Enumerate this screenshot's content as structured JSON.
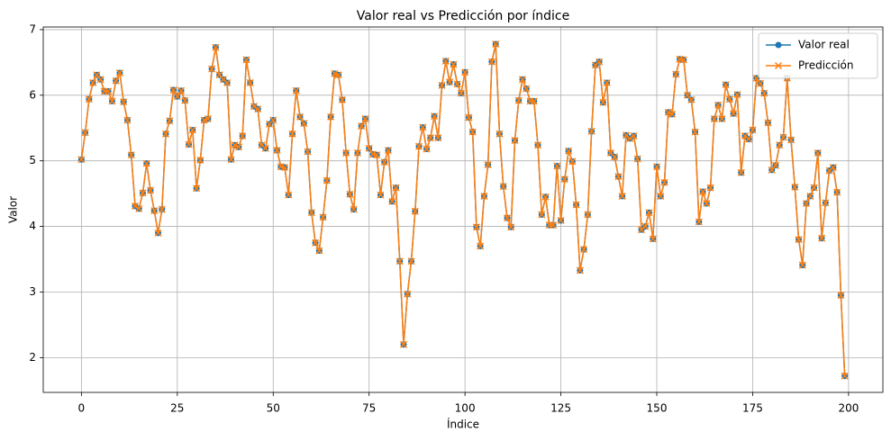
{
  "chart_data": {
    "type": "line",
    "title": "Valor real vs Predicción por índice",
    "xlabel": "Índice",
    "ylabel": "Valor",
    "x": [
      0,
      1,
      2,
      3,
      4,
      5,
      6,
      7,
      8,
      9,
      10,
      11,
      12,
      13,
      14,
      15,
      16,
      17,
      18,
      19,
      20,
      21,
      22,
      23,
      24,
      25,
      26,
      27,
      28,
      29,
      30,
      31,
      32,
      33,
      34,
      35,
      36,
      37,
      38,
      39,
      40,
      41,
      42,
      43,
      44,
      45,
      46,
      47,
      48,
      49,
      50,
      51,
      52,
      53,
      54,
      55,
      56,
      57,
      58,
      59,
      60,
      61,
      62,
      63,
      64,
      65,
      66,
      67,
      68,
      69,
      70,
      71,
      72,
      73,
      74,
      75,
      76,
      77,
      78,
      79,
      80,
      81,
      82,
      83,
      84,
      85,
      86,
      87,
      88,
      89,
      90,
      91,
      92,
      93,
      94,
      95,
      96,
      97,
      98,
      99,
      100,
      101,
      102,
      103,
      104,
      105,
      106,
      107,
      108,
      109,
      110,
      111,
      112,
      113,
      114,
      115,
      116,
      117,
      118,
      119,
      120,
      121,
      122,
      123,
      124,
      125,
      126,
      127,
      128,
      129,
      130,
      131,
      132,
      133,
      134,
      135,
      136,
      137,
      138,
      139,
      140,
      141,
      142,
      143,
      144,
      145,
      146,
      147,
      148,
      149,
      150,
      151,
      152,
      153,
      154,
      155,
      156,
      157,
      158,
      159,
      160,
      161,
      162,
      163,
      164,
      165,
      166,
      167,
      168,
      169,
      170,
      171,
      172,
      173,
      174,
      175,
      176,
      177,
      178,
      179,
      180,
      181,
      182,
      183,
      184,
      185,
      186,
      187,
      188,
      189,
      190,
      191,
      192,
      193,
      194,
      195,
      196,
      197,
      198,
      199
    ],
    "series": [
      {
        "name": "Valor real",
        "color": "#1f77b4",
        "marker": "o",
        "values": [
          5.02,
          5.43,
          5.94,
          6.19,
          6.31,
          6.24,
          6.06,
          6.06,
          5.91,
          6.22,
          6.34,
          5.9,
          5.62,
          5.09,
          4.31,
          4.27,
          4.51,
          4.96,
          4.55,
          4.24,
          3.9,
          4.26,
          5.41,
          5.61,
          6.08,
          5.98,
          6.07,
          5.92,
          5.25,
          5.47,
          4.58,
          5.01,
          5.62,
          5.64,
          6.4,
          6.73,
          6.31,
          6.24,
          6.19,
          5.02,
          5.24,
          5.21,
          5.38,
          6.54,
          6.19,
          5.83,
          5.79,
          5.24,
          5.19,
          5.56,
          5.62,
          5.16,
          4.91,
          4.9,
          4.48,
          5.41,
          6.07,
          5.67,
          5.57,
          5.14,
          4.21,
          3.75,
          3.63,
          4.14,
          4.7,
          5.67,
          6.33,
          6.31,
          5.93,
          5.12,
          4.49,
          4.26,
          5.12,
          5.53,
          5.64,
          5.19,
          5.1,
          5.09,
          4.48,
          4.98,
          5.16,
          4.38,
          4.59,
          3.47,
          2.2,
          2.97,
          3.47,
          4.23,
          5.22,
          5.51,
          5.18,
          5.35,
          5.68,
          5.35,
          6.15,
          6.52,
          6.2,
          6.47,
          6.17,
          6.03,
          6.35,
          5.66,
          5.44,
          3.99,
          3.7,
          4.46,
          4.94,
          6.51,
          6.78,
          5.41,
          4.61,
          4.13,
          3.99,
          5.31,
          5.92,
          6.24,
          6.1,
          5.91,
          5.91,
          5.24,
          4.18,
          4.45,
          4.02,
          4.02,
          4.92,
          4.09,
          4.72,
          5.15,
          4.99,
          4.33,
          3.33,
          3.65,
          4.18,
          5.45,
          6.46,
          6.51,
          5.89,
          6.19,
          5.12,
          5.06,
          4.76,
          4.46,
          5.39,
          5.34,
          5.38,
          5.03,
          3.95,
          4.0,
          4.21,
          3.81,
          4.91,
          4.46,
          4.67,
          5.74,
          5.71,
          6.32,
          6.55,
          6.54,
          6.0,
          5.93,
          5.44,
          4.07,
          4.53,
          4.35,
          4.59,
          5.64,
          5.85,
          5.64,
          6.16,
          5.94,
          5.72,
          6.01,
          4.82,
          5.38,
          5.33,
          5.47,
          6.26,
          6.18,
          6.03,
          5.58,
          4.86,
          4.93,
          5.24,
          5.36,
          6.26,
          5.32,
          4.6,
          3.8,
          3.41,
          4.35,
          4.46,
          4.59,
          5.12,
          3.82,
          4.36,
          4.85,
          4.9,
          4.52,
          2.95,
          1.72
        ]
      },
      {
        "name": "Predicción",
        "color": "#ff7f0e",
        "marker": "x",
        "values": [
          5.02,
          5.43,
          5.94,
          6.19,
          6.31,
          6.24,
          6.06,
          6.06,
          5.91,
          6.22,
          6.34,
          5.9,
          5.62,
          5.09,
          4.31,
          4.27,
          4.51,
          4.96,
          4.55,
          4.24,
          3.9,
          4.26,
          5.41,
          5.61,
          6.08,
          5.98,
          6.07,
          5.92,
          5.25,
          5.47,
          4.58,
          5.01,
          5.62,
          5.64,
          6.4,
          6.73,
          6.31,
          6.24,
          6.19,
          5.02,
          5.24,
          5.21,
          5.38,
          6.54,
          6.19,
          5.83,
          5.79,
          5.24,
          5.19,
          5.56,
          5.62,
          5.16,
          4.91,
          4.9,
          4.48,
          5.41,
          6.07,
          5.67,
          5.57,
          5.14,
          4.21,
          3.75,
          3.63,
          4.14,
          4.7,
          5.67,
          6.33,
          6.31,
          5.93,
          5.12,
          4.49,
          4.26,
          5.12,
          5.53,
          5.64,
          5.19,
          5.1,
          5.09,
          4.48,
          4.98,
          5.16,
          4.38,
          4.59,
          3.47,
          2.2,
          2.97,
          3.47,
          4.23,
          5.22,
          5.51,
          5.18,
          5.35,
          5.68,
          5.35,
          6.15,
          6.52,
          6.2,
          6.47,
          6.17,
          6.03,
          6.35,
          5.66,
          5.44,
          3.99,
          3.7,
          4.46,
          4.94,
          6.51,
          6.78,
          5.41,
          4.61,
          4.13,
          3.99,
          5.31,
          5.92,
          6.24,
          6.1,
          5.91,
          5.91,
          5.24,
          4.18,
          4.45,
          4.02,
          4.02,
          4.92,
          4.09,
          4.72,
          5.15,
          4.99,
          4.33,
          3.33,
          3.65,
          4.18,
          5.45,
          6.46,
          6.51,
          5.89,
          6.19,
          5.12,
          5.06,
          4.76,
          4.46,
          5.39,
          5.34,
          5.38,
          5.03,
          3.95,
          4.0,
          4.21,
          3.81,
          4.91,
          4.46,
          4.67,
          5.74,
          5.71,
          6.32,
          6.55,
          6.54,
          6.0,
          5.93,
          5.44,
          4.07,
          4.53,
          4.35,
          4.59,
          5.64,
          5.85,
          5.64,
          6.16,
          5.94,
          5.72,
          6.01,
          4.82,
          5.38,
          5.33,
          5.47,
          6.26,
          6.18,
          6.03,
          5.58,
          4.86,
          4.93,
          5.24,
          5.36,
          6.26,
          5.32,
          4.6,
          3.8,
          3.41,
          4.35,
          4.46,
          4.59,
          5.12,
          3.82,
          4.36,
          4.85,
          4.9,
          4.52,
          2.95,
          1.72
        ]
      }
    ],
    "xlim": [
      -9.95,
      208.95
    ],
    "xticks": [
      0,
      25,
      50,
      75,
      100,
      125,
      150,
      175,
      200
    ],
    "ylim": [
      1.47,
      7.04
    ],
    "yticks": [
      2,
      3,
      4,
      5,
      6,
      7
    ],
    "grid": true,
    "legend": "upper right"
  }
}
